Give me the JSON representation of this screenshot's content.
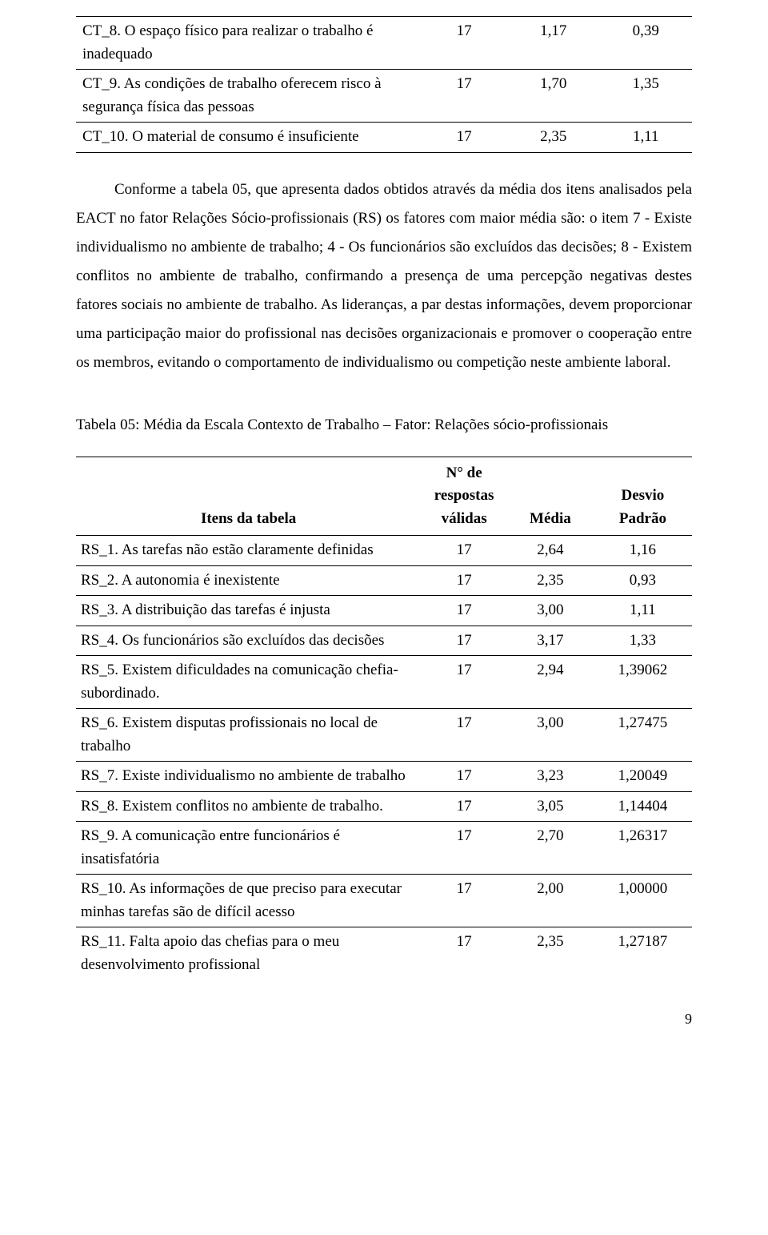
{
  "table1": {
    "rows": [
      {
        "item": "CT_8. O espaço físico para realizar o trabalho é inadequado",
        "n": "17",
        "mean": "1,17",
        "sd": "0,39"
      },
      {
        "item": "CT_9. As condições de trabalho oferecem risco à segurança física das pessoas",
        "n": "17",
        "mean": "1,70",
        "sd": "1,35"
      },
      {
        "item": "CT_10. O material de consumo é insuficiente",
        "n": "17",
        "mean": "2,35",
        "sd": "1,11"
      }
    ]
  },
  "paragraph": "Conforme a tabela 05, que apresenta dados obtidos através da média dos itens analisados pela EACT no fator Relações Sócio-profissionais (RS) os fatores com maior média são: o item 7 - Existe individualismo no ambiente de trabalho; 4 - Os funcionários são excluídos das decisões; 8 - Existem conflitos no ambiente de trabalho, confirmando a presença de uma percepção negativas destes fatores sociais no ambiente de trabalho. As lideranças, a par destas informações, devem proporcionar uma participação maior do profissional nas decisões organizacionais e promover o cooperação entre os membros, evitando o comportamento de individualismo ou competição neste ambiente laboral.",
  "caption": "Tabela 05: Média da Escala Contexto de Trabalho – Fator: Relações sócio-profissionais",
  "table2": {
    "headers": {
      "item": "Itens da tabela",
      "n": "N° de respostas válidas",
      "mean": "Média",
      "sd": "Desvio Padrão"
    },
    "rows": [
      {
        "item": "RS_1. As tarefas não estão claramente definidas",
        "n": "17",
        "mean": "2,64",
        "sd": "1,16"
      },
      {
        "item": "RS_2. A autonomia é inexistente",
        "n": "17",
        "mean": "2,35",
        "sd": "0,93"
      },
      {
        "item": "RS_3. A distribuição das tarefas é injusta",
        "n": "17",
        "mean": "3,00",
        "sd": "1,11"
      },
      {
        "item": "RS_4. Os funcionários são excluídos das decisões",
        "n": "17",
        "mean": "3,17",
        "sd": "1,33"
      },
      {
        "item": "RS_5. Existem dificuldades na comunicação chefia-subordinado.",
        "n": "17",
        "mean": "2,94",
        "sd": "1,39062"
      },
      {
        "item": "RS_6. Existem disputas profissionais no local de trabalho",
        "n": "17",
        "mean": "3,00",
        "sd": "1,27475"
      },
      {
        "item": "RS_7. Existe individualismo no ambiente de trabalho",
        "n": "17",
        "mean": "3,23",
        "sd": "1,20049"
      },
      {
        "item": "RS_8. Existem conflitos no ambiente de trabalho.",
        "n": "17",
        "mean": "3,05",
        "sd": "1,14404"
      },
      {
        "item": "RS_9. A comunicação entre funcionários é insatisfatória",
        "n": "17",
        "mean": "2,70",
        "sd": "1,26317"
      },
      {
        "item": "RS_10. As informações de que preciso para executar minhas tarefas são de difícil acesso",
        "n": "17",
        "mean": "2,00",
        "sd": "1,00000"
      },
      {
        "item": "RS_11. Falta apoio das chefias para o meu desenvolvimento profissional",
        "n": "17",
        "mean": "2,35",
        "sd": "1,27187"
      }
    ]
  },
  "page_number": "9"
}
